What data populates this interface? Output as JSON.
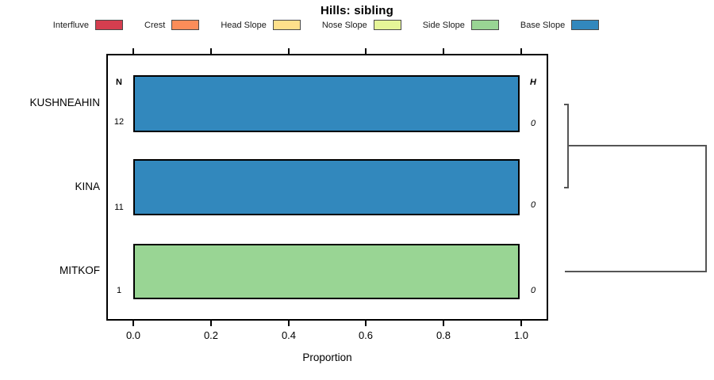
{
  "title": "Hills: sibling",
  "legend": {
    "items": [
      {
        "label": "Interfluve",
        "color": "#D53E4F"
      },
      {
        "label": "Crest",
        "color": "#FC8D59"
      },
      {
        "label": "Head Slope",
        "color": "#FEE08B"
      },
      {
        "label": "Nose Slope",
        "color": "#E6F598"
      },
      {
        "label": "Side Slope",
        "color": "#99D594"
      },
      {
        "label": "Base Slope",
        "color": "#3288BD"
      }
    ]
  },
  "axis": {
    "xlabel": "Proportion",
    "tick_labels": [
      "0.0",
      "0.2",
      "0.4",
      "0.6",
      "0.8",
      "1.0"
    ]
  },
  "columns": {
    "left_header": "N",
    "right_header": "H"
  },
  "chart_data": {
    "type": "bar",
    "orientation": "horizontal",
    "title": "Hills: sibling",
    "xlabel": "Proportion",
    "xlim": [
      0,
      1
    ],
    "xticks": [
      0.0,
      0.2,
      0.4,
      0.6,
      0.8,
      1.0
    ],
    "grid": false,
    "legend_position": "top",
    "categories": [
      "KUSHNEAHIN",
      "KINA",
      "MITKOF"
    ],
    "series": [
      {
        "name": "Interfluve",
        "color": "#D53E4F",
        "values": [
          0,
          0,
          0
        ]
      },
      {
        "name": "Crest",
        "color": "#FC8D59",
        "values": [
          0,
          0,
          0
        ]
      },
      {
        "name": "Head Slope",
        "color": "#FEE08B",
        "values": [
          0,
          0,
          0
        ]
      },
      {
        "name": "Nose Slope",
        "color": "#E6F598",
        "values": [
          0,
          0,
          0
        ]
      },
      {
        "name": "Side Slope",
        "color": "#99D594",
        "values": [
          0,
          0,
          1.0
        ]
      },
      {
        "name": "Base Slope",
        "color": "#3288BD",
        "values": [
          1.0,
          1.0,
          0
        ]
      }
    ],
    "rows": [
      {
        "category": "KUSHNEAHIN",
        "n": "12",
        "h": "0",
        "segment": "Base Slope",
        "color": "#3288BD",
        "proportion": 1.0
      },
      {
        "category": "KINA",
        "n": "11",
        "h": "0",
        "segment": "Base Slope",
        "color": "#3288BD",
        "proportion": 1.0
      },
      {
        "category": "MITKOF",
        "n": "1",
        "h": "0",
        "segment": "Side Slope",
        "color": "#99D594",
        "proportion": 1.0
      }
    ]
  },
  "dendrogram": {
    "line_color": "#555555",
    "merge_order": [
      {
        "members": [
          "KUSHNEAHIN",
          "KINA"
        ]
      },
      {
        "members": [
          "KUSHNEAHIN+KINA",
          "MITKOF"
        ]
      }
    ]
  }
}
